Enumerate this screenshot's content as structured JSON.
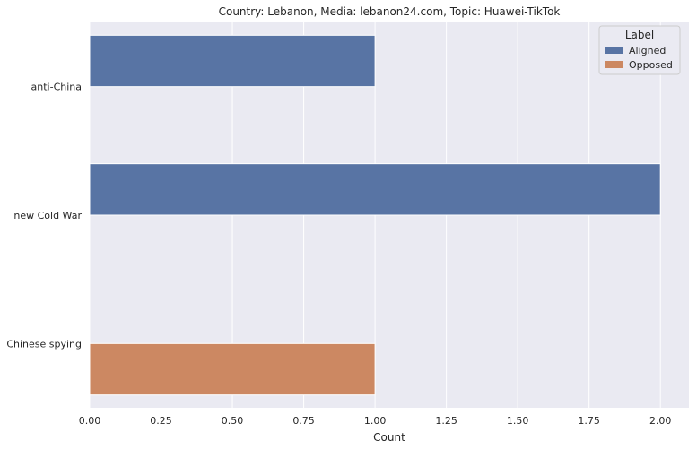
{
  "chart_data": {
    "type": "bar",
    "orientation": "horizontal",
    "title": "Country: Lebanon, Media: lebanon24.com, Topic: Huawei-TikTok",
    "xlabel": "Count",
    "ylabel": "",
    "categories": [
      "anti-China",
      "new Cold War",
      "Chinese spying"
    ],
    "series": [
      {
        "name": "Aligned",
        "color": "#5874a4",
        "values": [
          1,
          2,
          null
        ]
      },
      {
        "name": "Opposed",
        "color": "#cc8862",
        "values": [
          null,
          null,
          1
        ]
      }
    ],
    "xlim": [
      0,
      2.1
    ],
    "xticks": [
      0,
      0.25,
      0.5,
      0.75,
      1.0,
      1.25,
      1.5,
      1.75,
      2.0
    ],
    "xtick_labels": [
      "0.00",
      "0.25",
      "0.50",
      "0.75",
      "1.00",
      "1.25",
      "1.50",
      "1.75",
      "2.00"
    ],
    "grid": true,
    "legend": {
      "title": "Label",
      "placement": "top-right"
    },
    "background": "#eaeaf2"
  }
}
